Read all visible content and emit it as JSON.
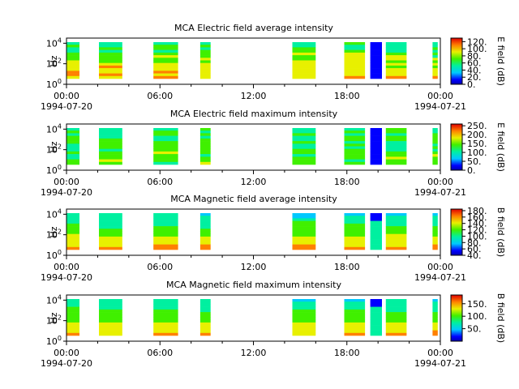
{
  "chart_data": [
    {
      "type": "heatmap",
      "title": "MCA  Electric field average intensity",
      "ylabel": "Hz",
      "x_range": [
        "1994-07-20 00:00",
        "1994-07-21 00:00"
      ],
      "x_ticks": [
        "00:00",
        "06:00",
        "12:00",
        "18:00",
        "00:00"
      ],
      "x_tick_dates": [
        "1994-07-20",
        "1994-07-21"
      ],
      "y_ticks": [
        "10^0",
        "10^2",
        "10^4"
      ],
      "colorbar": {
        "label": "E field (dB)",
        "ticks": [
          "120.",
          "100.",
          "80.",
          "60.",
          "40.",
          "20.",
          "0."
        ],
        "range": [
          0,
          130
        ]
      },
      "data_intervals_utc": [
        [
          "00:00",
          "00:50"
        ],
        [
          "02:05",
          "03:35"
        ],
        [
          "05:35",
          "07:10"
        ],
        [
          "08:35",
          "09:15"
        ],
        [
          "14:30",
          "16:00"
        ],
        [
          "17:50",
          "19:10"
        ],
        [
          "19:30",
          "20:15"
        ],
        [
          "20:30",
          "21:50"
        ],
        [
          "23:30",
          "23:50"
        ]
      ],
      "low_intensity_interval_utc": [
        "19:30",
        "20:15"
      ]
    },
    {
      "type": "heatmap",
      "title": "MCA  Electric field maximum intensity",
      "ylabel": "Hz",
      "x_range": [
        "1994-07-20 00:00",
        "1994-07-21 00:00"
      ],
      "x_ticks": [
        "00:00",
        "06:00",
        "12:00",
        "18:00",
        "00:00"
      ],
      "x_tick_dates": [
        "1994-07-20",
        "1994-07-21"
      ],
      "y_ticks": [
        "10^0",
        "10^2",
        "10^4"
      ],
      "colorbar": {
        "label": "E field (dB)",
        "ticks": [
          "250.",
          "200.",
          "150.",
          "100.",
          "50.",
          "0."
        ],
        "range": [
          0,
          260
        ]
      },
      "data_intervals_utc": [
        [
          "00:00",
          "00:50"
        ],
        [
          "02:05",
          "03:35"
        ],
        [
          "05:35",
          "07:10"
        ],
        [
          "08:35",
          "09:15"
        ],
        [
          "14:30",
          "16:00"
        ],
        [
          "17:50",
          "19:10"
        ],
        [
          "19:30",
          "20:15"
        ],
        [
          "20:30",
          "21:50"
        ],
        [
          "23:30",
          "23:50"
        ]
      ],
      "low_intensity_interval_utc": [
        "19:30",
        "20:15"
      ]
    },
    {
      "type": "heatmap",
      "title": "MCA  Magnetic field average intensity",
      "ylabel": "Hz",
      "x_range": [
        "1994-07-20 00:00",
        "1994-07-21 00:00"
      ],
      "x_ticks": [
        "00:00",
        "06:00",
        "12:00",
        "18:00",
        "00:00"
      ],
      "x_tick_dates": [
        "1994-07-20",
        "1994-07-21"
      ],
      "y_ticks": [
        "10^0",
        "10^2",
        "10^4"
      ],
      "colorbar": {
        "label": "B field (dB)",
        "ticks": [
          "180.",
          "160.",
          "140.",
          "120.",
          "100.",
          "80.",
          "60.",
          "40."
        ],
        "range": [
          40,
          185
        ]
      },
      "data_intervals_utc": [
        [
          "00:00",
          "00:50"
        ],
        [
          "02:05",
          "03:35"
        ],
        [
          "05:35",
          "07:10"
        ],
        [
          "08:35",
          "09:15"
        ],
        [
          "14:30",
          "16:00"
        ],
        [
          "17:50",
          "19:10"
        ],
        [
          "19:30",
          "20:15"
        ],
        [
          "20:30",
          "21:50"
        ],
        [
          "23:30",
          "23:50"
        ]
      ],
      "low_intensity_interval_utc": [
        "19:30",
        "20:15"
      ]
    },
    {
      "type": "heatmap",
      "title": "MCA  Magnetic field maximum intensity",
      "ylabel": "Hz",
      "x_range": [
        "1994-07-20 00:00",
        "1994-07-21 00:00"
      ],
      "x_ticks": [
        "00:00",
        "06:00",
        "12:00",
        "18:00",
        "00:00"
      ],
      "x_tick_dates": [
        "1994-07-20",
        "1994-07-21"
      ],
      "y_ticks": [
        "10^0",
        "10^2",
        "10^4"
      ],
      "colorbar": {
        "label": "B field (dB)",
        "ticks": [
          "150.",
          "100.",
          "50."
        ],
        "range": [
          0,
          185
        ]
      },
      "data_intervals_utc": [
        [
          "00:00",
          "00:50"
        ],
        [
          "02:05",
          "03:35"
        ],
        [
          "05:35",
          "07:10"
        ],
        [
          "08:35",
          "09:15"
        ],
        [
          "14:30",
          "16:00"
        ],
        [
          "17:50",
          "19:10"
        ],
        [
          "19:30",
          "20:15"
        ],
        [
          "20:30",
          "21:50"
        ],
        [
          "23:30",
          "23:50"
        ]
      ],
      "low_intensity_interval_utc": [
        "19:30",
        "20:15"
      ]
    }
  ]
}
